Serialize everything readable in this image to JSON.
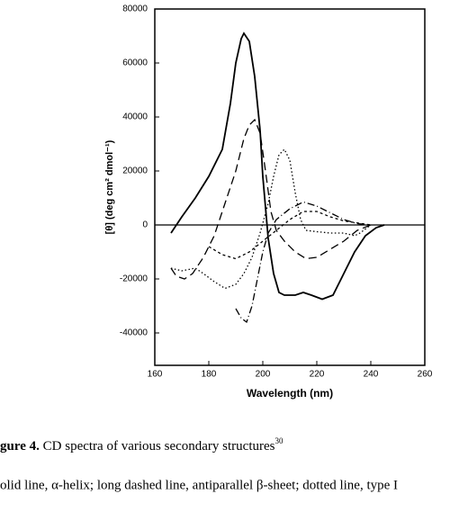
{
  "chart_data": {
    "type": "line",
    "xlabel": "Wavelength (nm)",
    "ylabel": "[θ] (deg cm² dmol⁻¹)",
    "xlim": [
      160,
      260
    ],
    "xticks": [
      160,
      180,
      200,
      220,
      240,
      260
    ],
    "ylim": [
      -52000,
      80000
    ],
    "yticks": [
      -40000,
      -20000,
      0,
      20000,
      40000,
      60000,
      80000
    ],
    "hline": 0,
    "series": [
      {
        "style": "solid",
        "color": "#000000",
        "x": [
          166,
          170,
          175,
          180,
          185,
          188,
          190,
          192,
          193,
          195,
          197,
          199,
          200,
          202,
          204,
          206,
          208,
          212,
          215,
          218,
          222,
          226,
          230,
          234,
          238,
          242,
          245
        ],
        "values": [
          -3000,
          3000,
          10000,
          18000,
          28000,
          45000,
          60000,
          69000,
          71000,
          68000,
          55000,
          35000,
          18000,
          -5000,
          -18000,
          -25000,
          -26000,
          -26000,
          -25000,
          -26000,
          -27500,
          -26000,
          -18000,
          -10000,
          -4000,
          -1000,
          0
        ]
      },
      {
        "style": "dashed",
        "color": "#000000",
        "x": [
          166,
          168,
          171,
          174,
          178,
          182,
          186,
          190,
          193,
          195,
          197,
          199,
          201,
          203,
          205,
          208,
          212,
          216,
          220,
          225,
          230,
          235,
          240
        ],
        "values": [
          -16000,
          -19000,
          -20000,
          -18000,
          -12000,
          -4000,
          8000,
          20000,
          32000,
          37000,
          39000,
          34000,
          20000,
          5000,
          -2000,
          -6000,
          -10000,
          -12500,
          -12000,
          -9000,
          -6000,
          -2000,
          0
        ]
      },
      {
        "style": "dotted",
        "color": "#000000",
        "x": [
          166,
          170,
          175,
          178,
          182,
          186,
          190,
          193,
          196,
          199,
          202,
          204,
          206,
          208,
          210,
          212,
          214,
          216,
          220,
          225,
          230,
          234,
          236,
          240
        ],
        "values": [
          -16000,
          -17000,
          -16000,
          -18000,
          -21000,
          -23500,
          -22000,
          -18000,
          -12000,
          -3000,
          8000,
          18000,
          26000,
          28000,
          24000,
          12000,
          2000,
          -2000,
          -2500,
          -3000,
          -3000,
          -4000,
          -3000,
          0
        ]
      },
      {
        "style": "dashdot",
        "color": "#000000",
        "x": [
          190,
          192,
          194,
          196,
          198,
          200,
          202,
          205,
          210,
          215,
          220,
          225,
          230,
          235,
          240
        ],
        "values": [
          -31000,
          -34500,
          -36000,
          -30000,
          -20000,
          -10000,
          -3000,
          2000,
          6000,
          8500,
          7000,
          4500,
          2000,
          500,
          0
        ]
      },
      {
        "style": "shortdash",
        "color": "#000000",
        "x": [
          180,
          185,
          190,
          195,
          200,
          205,
          210,
          215,
          220,
          225,
          230,
          240
        ],
        "values": [
          -8000,
          -11000,
          -12500,
          -10000,
          -6000,
          -2000,
          2000,
          5000,
          5000,
          3000,
          1500,
          0
        ]
      }
    ]
  },
  "caption": {
    "label": "gure 4.",
    "text": " CD spectra of various secondary structures",
    "ref": "30"
  },
  "note": "olid line, α-helix; long dashed line, antiparallel β-sheet; dotted line, type I"
}
